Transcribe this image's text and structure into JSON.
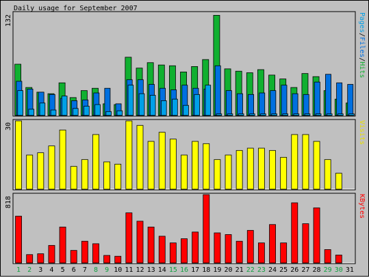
{
  "chart_data": {
    "type": "bar",
    "title": "Daily usage for September 2007",
    "categories": [
      "1",
      "2",
      "3",
      "4",
      "5",
      "6",
      "7",
      "8",
      "9",
      "10",
      "11",
      "12",
      "13",
      "14",
      "15",
      "16",
      "17",
      "18",
      "19",
      "20",
      "21",
      "22",
      "23",
      "24",
      "25",
      "26",
      "27",
      "28",
      "29",
      "30",
      "31"
    ],
    "weekend_days": [
      1,
      2,
      8,
      9,
      15,
      16,
      22,
      23,
      29,
      30
    ],
    "panels": [
      {
        "key": "hits",
        "max_label": "132",
        "ymax": 132,
        "right_label_parts": [
          {
            "text": "Pages",
            "color": "#00a0e8"
          },
          {
            "text": "/",
            "color": "#000000"
          },
          {
            "text": "Files",
            "color": "#0070e0"
          },
          {
            "text": "/",
            "color": "#000000"
          },
          {
            "text": "Hits",
            "color": "#10b030"
          }
        ],
        "series": [
          {
            "name": "Hits",
            "color": "#10b030",
            "values": [
              66,
              36,
              30,
              28,
              42,
              23,
              32,
              35,
              15,
              14,
              75,
              61,
              68,
              65,
              64,
              56,
              63,
              72,
              129,
              60,
              57,
              55,
              59,
              52,
              47,
              36,
              54,
              50,
              32,
              21,
              16
            ]
          },
          {
            "name": "Files",
            "color": "#0070e0",
            "values": [
              44,
              34,
              30,
              27,
              22,
              19,
              20,
              29,
              35,
              15,
              46,
              46,
              40,
              35,
              33,
              39,
              35,
              34,
              64,
              32,
              28,
              27,
              29,
              32,
              39,
              28,
              27,
              43,
              53,
              42,
              40
            ]
          },
          {
            "name": "Pages",
            "color": "#00a0e8",
            "values": [
              32,
              8,
              16,
              7,
              25,
              9,
              12,
              14,
              5,
              6,
              39,
              28,
              26,
              19,
              21,
              13,
              27,
              39,
              2,
              2,
              2,
              2,
              2,
              2,
              2,
              2,
              2,
              2,
              2,
              2,
              2
            ]
          }
        ]
      },
      {
        "key": "visits",
        "max_label": "30",
        "ymax": 30,
        "right_label_parts": [
          {
            "text": "Visits",
            "color": "#e8e000"
          }
        ],
        "series": [
          {
            "name": "Visits",
            "color": "#ffff00",
            "values": [
              30,
              15,
              16,
              19,
              26,
              10,
              13,
              24,
              12,
              11,
              30,
              28,
              21,
              25,
              22,
              15,
              21,
              20,
              13,
              15,
              17,
              18,
              18,
              17,
              14,
              24,
              24,
              21,
              13,
              7,
              0
            ]
          }
        ]
      },
      {
        "key": "kbytes",
        "max_label": "818",
        "ymax": 818,
        "right_label_parts": [
          {
            "text": "KBytes",
            "color": "#ff0000"
          }
        ],
        "series": [
          {
            "name": "KBytes",
            "color": "#ff0000",
            "values": [
              560,
              100,
              110,
              210,
              430,
              150,
              260,
              230,
              90,
              80,
              600,
              500,
              430,
              320,
              240,
              290,
              370,
              818,
              360,
              340,
              260,
              390,
              240,
              460,
              240,
              720,
              470,
              660,
              160,
              95,
              0
            ]
          }
        ]
      }
    ]
  }
}
